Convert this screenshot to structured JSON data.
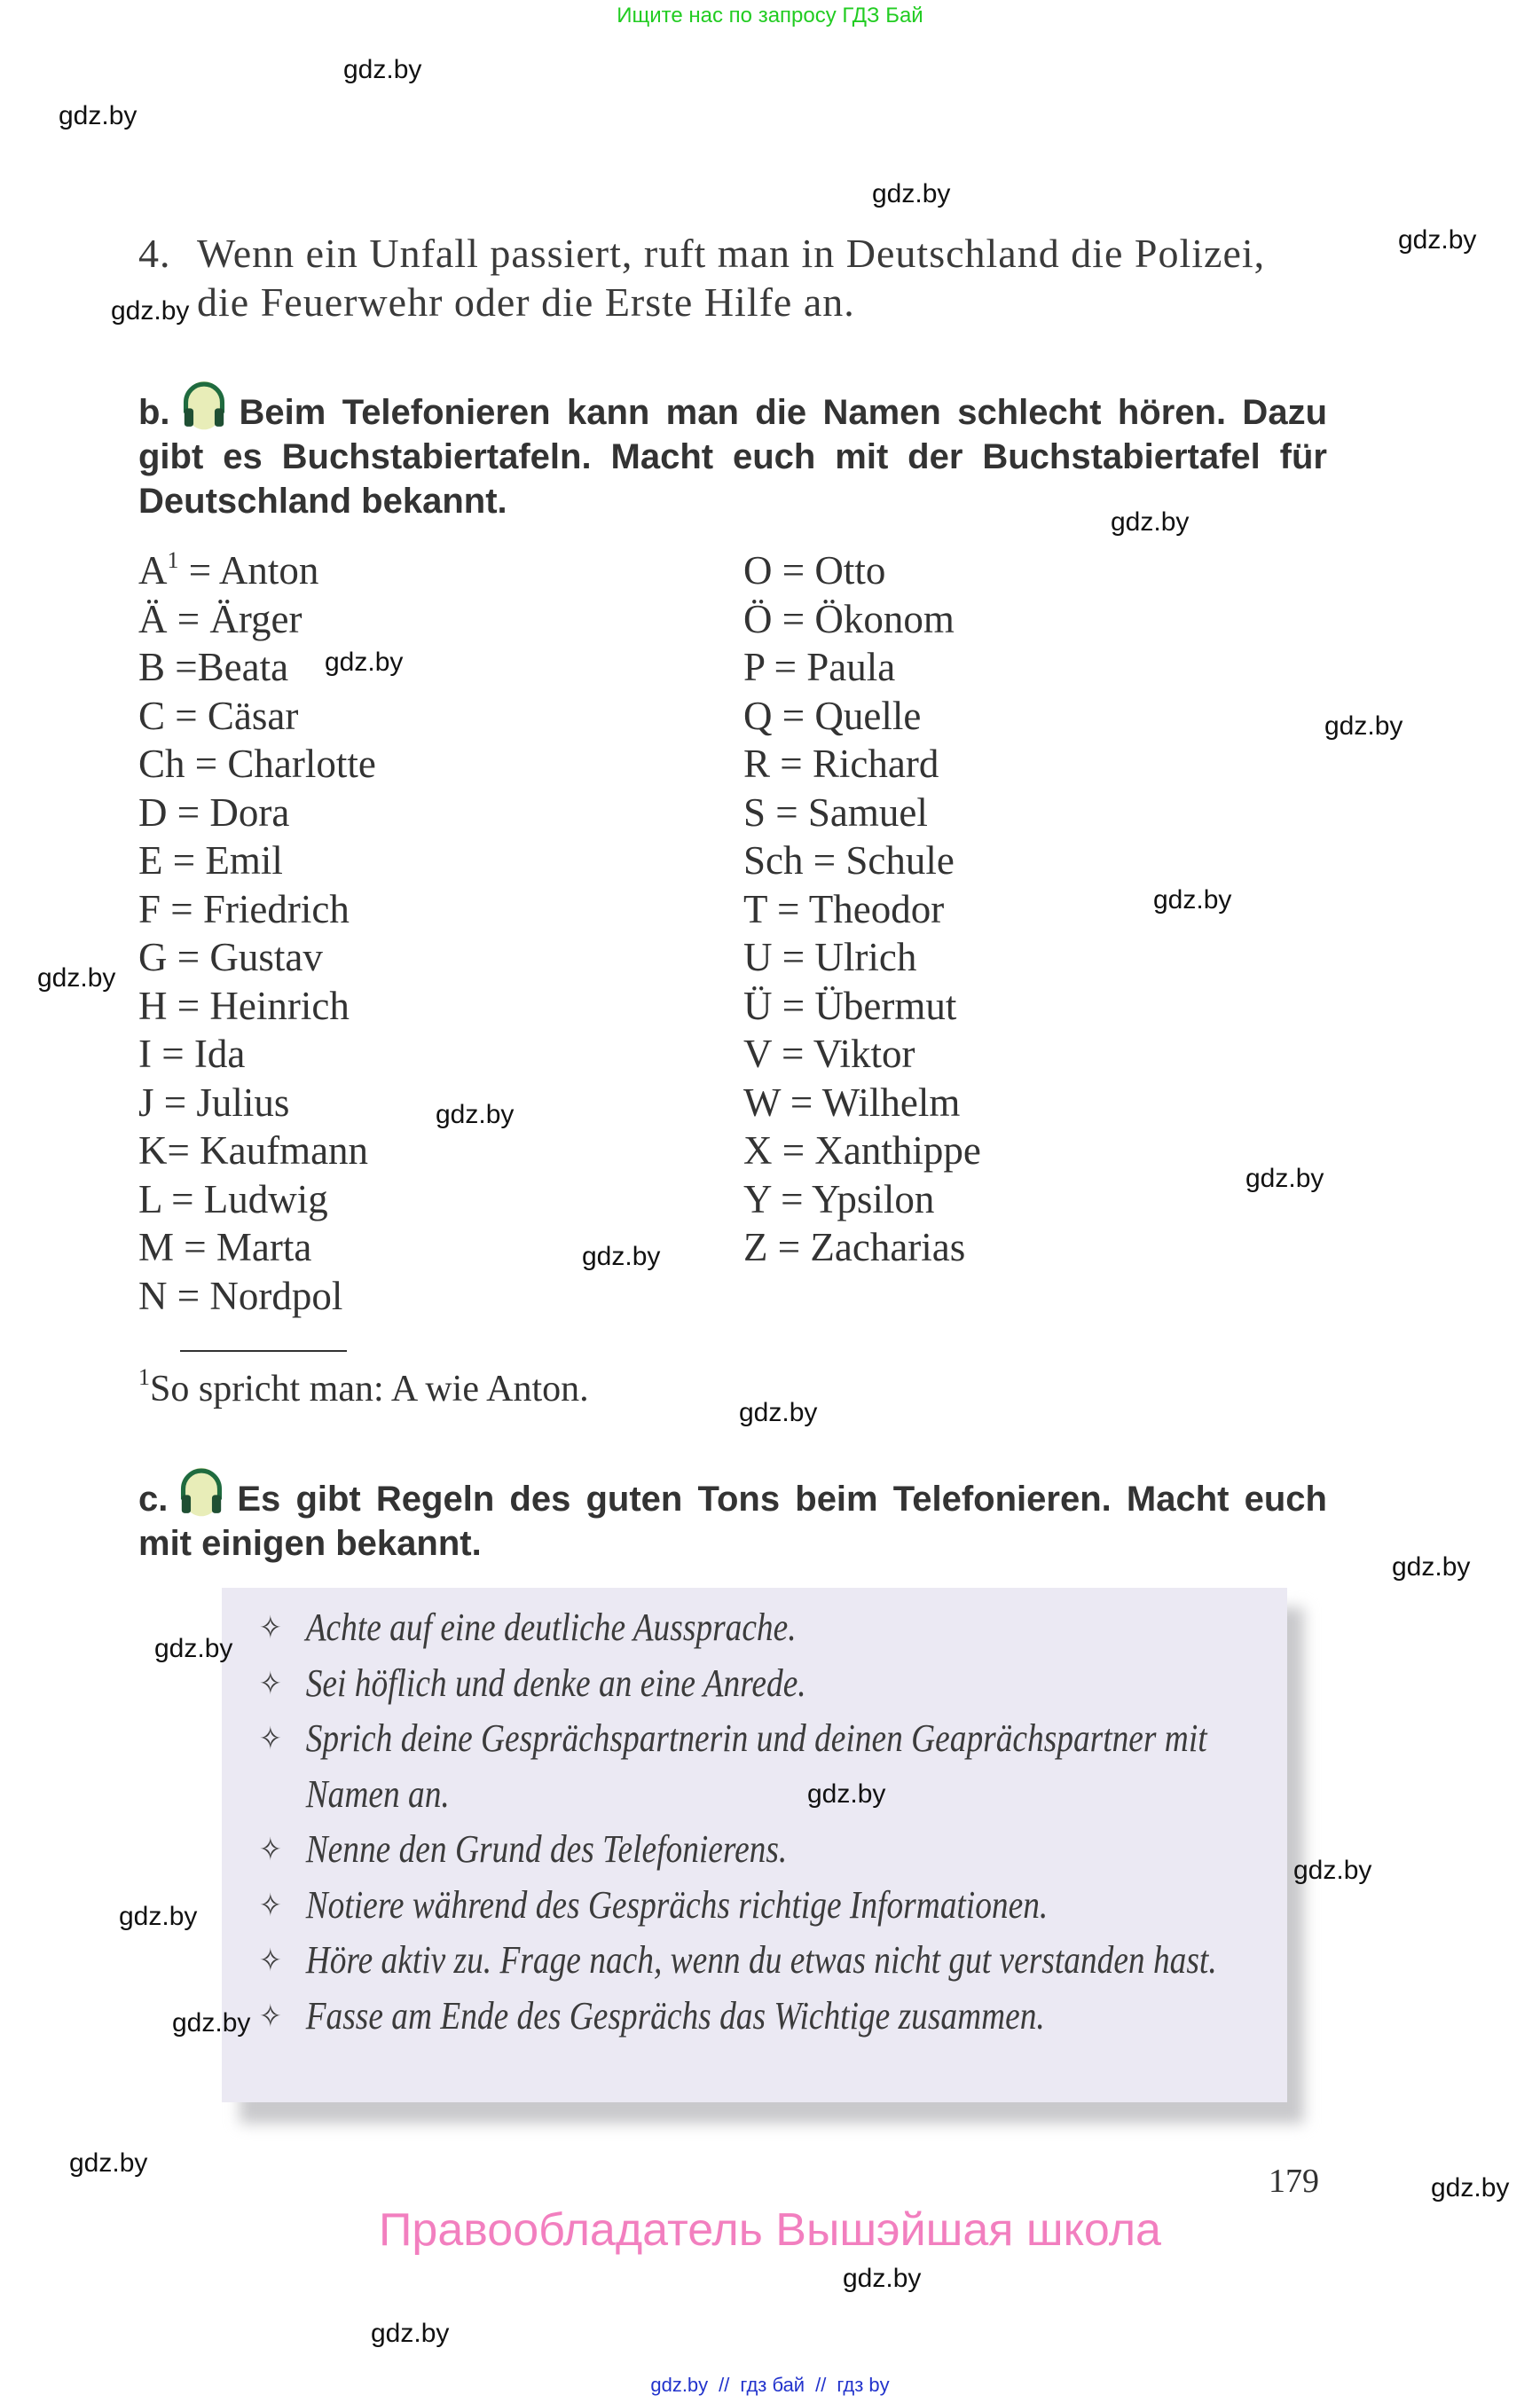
{
  "top_banner": "Ищите нас по запросу ГДЗ Бай",
  "watermark": "gdz.by",
  "item4": {
    "number": "4.",
    "text": "Wenn ein Unfall passiert, ruft man in Deutschland die Polizei, die Feuerwehr oder die Erste Hilfe an."
  },
  "task_b": {
    "label": "b.",
    "icon": "headphones-icon",
    "text": "Beim Telefonieren kann man die Namen schlecht hören. Dazu gibt es Buchstabiertafeln. Macht euch mit der Buchstabiertafel für Deutschland bekannt."
  },
  "spelling_table": {
    "column1": [
      {
        "letter": "A",
        "sup": "1",
        "word": "= Anton"
      },
      {
        "letter": "Ä",
        "word": "= Ärger"
      },
      {
        "letter": "B",
        "word": "=Beata"
      },
      {
        "letter": "C",
        "word": "= Cäsar"
      },
      {
        "letter": "Ch",
        "word": "= Charlotte"
      },
      {
        "letter": "D",
        "word": "= Dora"
      },
      {
        "letter": "E",
        "word": "= Emil"
      },
      {
        "letter": "F",
        "word": "= Friedrich"
      },
      {
        "letter": "G",
        "word": "= Gustav"
      },
      {
        "letter": "H",
        "word": "= Heinrich"
      },
      {
        "letter": "I",
        "word": "= Ida"
      },
      {
        "letter": "J",
        "word": "= Julius"
      },
      {
        "letter": "K",
        "word": "= Kaufmann"
      },
      {
        "letter": "L",
        "word": "= Ludwig"
      },
      {
        "letter": "M",
        "word": "= Marta"
      },
      {
        "letter": "N",
        "word": "= Nordpol"
      }
    ],
    "column2": [
      {
        "letter": "O",
        "word": "= Otto"
      },
      {
        "letter": "Ö",
        "word": "= Ökonom"
      },
      {
        "letter": "P",
        "word": "= Paula"
      },
      {
        "letter": "Q",
        "word": "= Quelle"
      },
      {
        "letter": "R",
        "word": "= Richard"
      },
      {
        "letter": "S",
        "word": "= Samuel"
      },
      {
        "letter": "Sch",
        "word": "= Schule"
      },
      {
        "letter": "T",
        "word": "= Theodor"
      },
      {
        "letter": "U",
        "word": "= Ulrich"
      },
      {
        "letter": "Ü",
        "word": "= Übermut"
      },
      {
        "letter": "V",
        "word": "= Viktor"
      },
      {
        "letter": "W",
        "word": "= Wilhelm"
      },
      {
        "letter": "X",
        "word": "= Xanthippe"
      },
      {
        "letter": "Y",
        "word": "= Ypsilon"
      },
      {
        "letter": "Z",
        "word": "= Zacharias"
      }
    ]
  },
  "footnote": {
    "mark": "1",
    "text": "So spricht man: A wie Anton."
  },
  "task_c": {
    "label": "c.",
    "icon": "headphones-icon",
    "text": "Es gibt Regeln des guten Tons beim Telefonieren. Macht euch mit einigen bekannt."
  },
  "rules_box": {
    "bullet": "✧",
    "items": [
      "Achte auf eine deutliche Aussprache.",
      "Sei höflich und denke an eine Anrede.",
      "Sprich deine Gesprächspartnerin und deinen Geaprächspartner mit Namen an.",
      "Nenne den Grund des Telefonierens.",
      "Notiere während des Gesprächs richtige Informationen.",
      "Höre aktiv zu. Frage nach, wenn du etwas nicht gut verstanden hast.",
      "Fasse am Ende des Gesprächs das Wichtige zusammen."
    ],
    "background": "#ebe9f3"
  },
  "page_number": "179",
  "copyright_owner": "Правообладатель Вышэйшая школа",
  "bottom_links": [
    "gdz.by",
    "//",
    "гдз бай",
    "//",
    "гдз by"
  ],
  "colors": {
    "banner": "#22cc22",
    "owner": "#f27fbf",
    "links": "#2233cc",
    "headphones": "#1f6b3f"
  }
}
